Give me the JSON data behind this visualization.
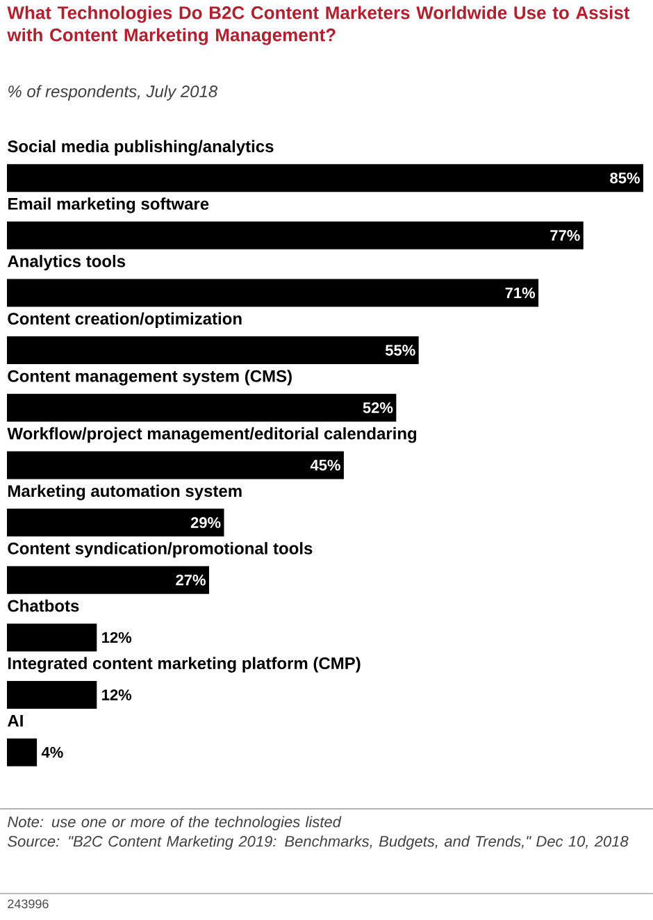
{
  "chart_data": {
    "type": "bar",
    "orientation": "horizontal",
    "title": "What Technologies Do B2C Content Marketers Worldwide Use to Assist with Content Marketing Management?",
    "subtitle": "% of respondents, July 2018",
    "categories": [
      "Social media publishing/analytics",
      "Email marketing software",
      "Analytics tools",
      "Content creation/optimization",
      "Content management system (CMS)",
      "Workflow/project management/editorial calendaring",
      "Marketing automation system",
      "Content syndication/promotional tools",
      "Chatbots",
      "Integrated content marketing platform (CMP)",
      "AI"
    ],
    "values": [
      85,
      77,
      71,
      55,
      52,
      45,
      29,
      27,
      12,
      12,
      4
    ],
    "value_labels": [
      "85%",
      "77%",
      "71%",
      "55%",
      "52%",
      "45%",
      "29%",
      "27%",
      "12%",
      "12%",
      "4%"
    ],
    "color": "#000000",
    "annotations": [
      "Note: use one or more of the technologies listed",
      "Source: \"B2C Content Marketing 2019: Benchmarks, Budgets, and Trends,\" Dec 10, 2018",
      "243996"
    ]
  }
}
